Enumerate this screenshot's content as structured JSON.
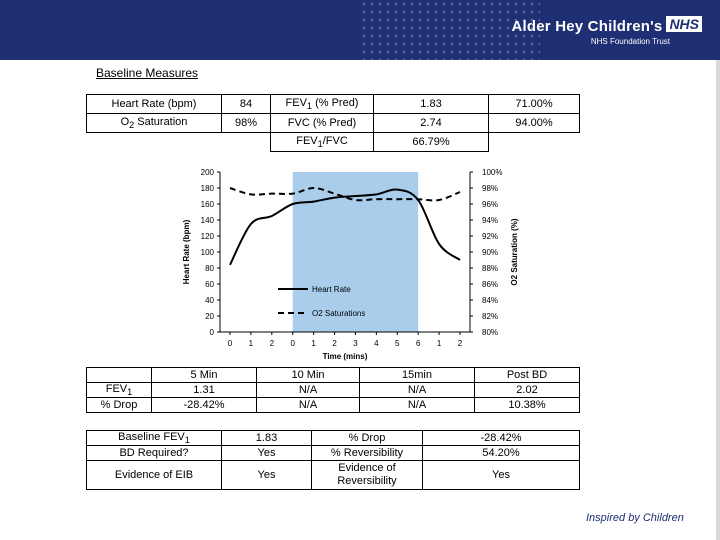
{
  "header": {
    "org_name": "Alder Hey Children's",
    "nhs_badge": "NHS",
    "trust": "NHS Foundation Trust"
  },
  "section_title": "Baseline Measures",
  "baseline": {
    "rows": [
      [
        "Heart Rate (bpm)",
        "84",
        "FEV1 (% Pred)",
        "1.83",
        "71.00%"
      ],
      [
        "O2 Saturation",
        "98%",
        "FVC (% Pred)",
        "2.74",
        "94.00%"
      ]
    ],
    "ratio_label": "FEV1/FVC",
    "ratio_value": "66.79%"
  },
  "chart_data": {
    "type": "line",
    "x_labels": [
      "0",
      "1",
      "2",
      "0",
      "1",
      "2",
      "3",
      "4",
      "5",
      "6",
      "1",
      "2"
    ],
    "xlabel": "Time (mins)",
    "ylabel_left": "Heart Rate (bpm)",
    "ylabel_right": "O2 Saturation (%)",
    "ylim_left": [
      0,
      200
    ],
    "ylim_right": [
      80,
      100
    ],
    "left_ticks": [
      "0",
      "20",
      "40",
      "60",
      "80",
      "100",
      "120",
      "140",
      "160",
      "180",
      "200"
    ],
    "right_ticks": [
      "80%",
      "82%",
      "84%",
      "86%",
      "88%",
      "90%",
      "92%",
      "94%",
      "96%",
      "98%",
      "100%"
    ],
    "shaded_region": {
      "start_index": 3,
      "end_index": 9
    },
    "series": [
      {
        "name": "Heart Rate",
        "axis": "left",
        "style": "solid",
        "values": [
          84,
          135,
          145,
          160,
          163,
          168,
          170,
          172,
          178,
          165,
          110,
          90
        ]
      },
      {
        "name": "O2 Saturations",
        "axis": "right",
        "style": "dashed",
        "values": [
          98,
          97.2,
          97.3,
          97.3,
          98,
          97.3,
          96.5,
          96.6,
          96.6,
          96.6,
          96.5,
          97.5
        ]
      }
    ]
  },
  "exercise": {
    "headers": [
      "",
      "5 Min",
      "10 Min",
      "15min",
      "Post BD"
    ],
    "rows": [
      [
        "FEV1",
        "1.31",
        "N/A",
        "N/A",
        "2.02"
      ],
      [
        "% Drop",
        "-28.42%",
        "N/A",
        "N/A",
        "10.38%"
      ]
    ]
  },
  "summary": {
    "rows": [
      [
        "Baseline FEV1",
        "1.83",
        "% Drop",
        "-28.42%"
      ],
      [
        "BD Required?",
        "Yes",
        "% Reversibility",
        "54.20%"
      ],
      [
        "Evidence of EIB",
        "Yes",
        "Evidence of Reversibility",
        "Yes"
      ]
    ]
  },
  "footer": "Inspired by Children",
  "colors": {
    "navy": "#1e2f73",
    "shade": "#a9cdea"
  }
}
